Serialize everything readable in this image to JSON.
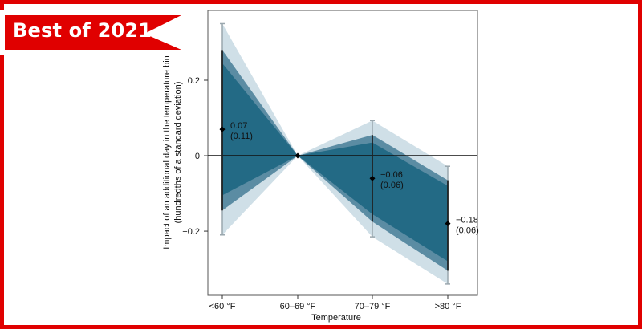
{
  "badge": {
    "label": "Best of 2021",
    "color": "#e00000"
  },
  "chart_data": {
    "type": "line",
    "title": "",
    "xlabel": "Temperature",
    "ylabel_line1": "Impact of an additional day in the temperature bin",
    "ylabel_line2": "(hundredths of a standard deviation)",
    "categories": [
      "<60 °F",
      "60–69 °F",
      "70–79 °F",
      ">80 °F"
    ],
    "estimate": [
      0.07,
      0,
      -0.06,
      -0.18
    ],
    "se_labels": [
      "(0.11)",
      "",
      "(0.06)",
      "(0.06)"
    ],
    "value_labels": [
      "0.07",
      "",
      "−0.06",
      "−0.18"
    ],
    "band_90": {
      "lower": [
        -0.105,
        0,
        -0.155,
        -0.28
      ],
      "upper": [
        0.245,
        0,
        0.035,
        -0.08
      ]
    },
    "band_95": {
      "lower": [
        -0.145,
        0,
        -0.175,
        -0.305
      ],
      "upper": [
        0.28,
        0,
        0.055,
        -0.065
      ]
    },
    "band_outer": {
      "lower": [
        -0.21,
        0,
        -0.215,
        -0.34
      ],
      "upper": [
        0.35,
        0,
        0.093,
        -0.028
      ]
    },
    "y_ticks": [
      0.2,
      0,
      -0.2
    ],
    "y_tick_labels": [
      "0.2",
      "0",
      "−0.2"
    ],
    "ylim": [
      -0.37,
      0.385
    ],
    "colors": {
      "inner": "#236a85",
      "mid": "#5b8ca3",
      "outer": "#cfdfe7",
      "whisker": "#9aa7ae"
    },
    "grid": false
  }
}
